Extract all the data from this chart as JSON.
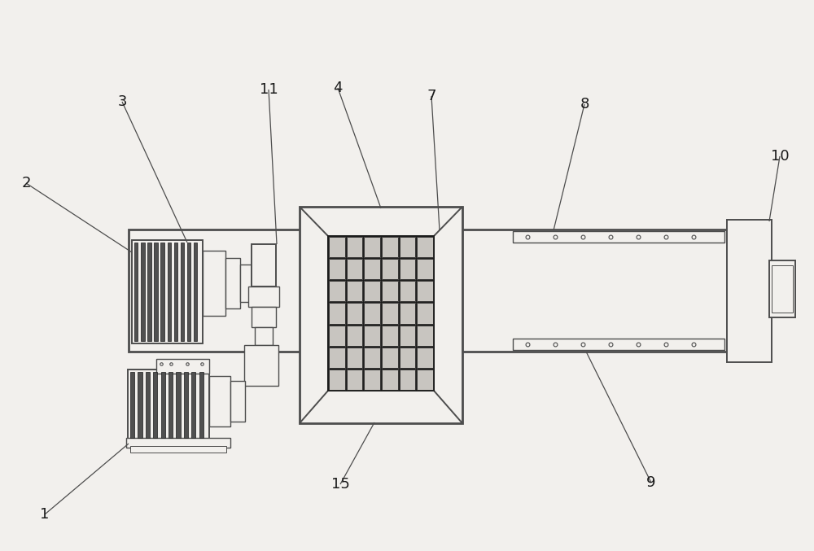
{
  "bg_color": "#f2f0ed",
  "line_color": "#4d4d4d",
  "dark_color": "#1a1a1a",
  "fig_width": 10.0,
  "fig_height": 6.77,
  "label_fontsize": 13
}
